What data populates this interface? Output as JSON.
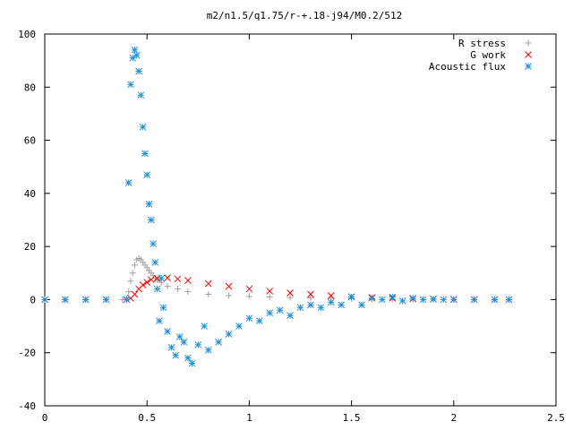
{
  "chart_data": {
    "type": "scatter",
    "title": "m2/n1.5/q1.75/r-+.18-j94/M0.2/512",
    "xlabel": "",
    "ylabel": "",
    "xlim": [
      0,
      2.5
    ],
    "ylim": [
      -40,
      100
    ],
    "x_ticks": [
      0,
      0.5,
      1,
      1.5,
      2,
      2.5
    ],
    "x_tick_labels": [
      "0",
      "0.5",
      "1",
      "1.5",
      "2",
      "2.5"
    ],
    "y_ticks": [
      -40,
      -20,
      0,
      20,
      40,
      60,
      80,
      100
    ],
    "y_tick_labels": [
      "-40",
      "-20",
      "0",
      "20",
      "40",
      "60",
      "80",
      "100"
    ],
    "grid": false,
    "legend_position": "top-right",
    "series": [
      {
        "name": "R stress",
        "marker": "plus",
        "color": "#a0a0a0",
        "x": [
          0.0,
          0.1,
          0.2,
          0.3,
          0.38,
          0.4,
          0.41,
          0.42,
          0.43,
          0.44,
          0.45,
          0.46,
          0.47,
          0.48,
          0.49,
          0.5,
          0.51,
          0.52,
          0.53,
          0.54,
          0.55,
          0.57,
          0.6,
          0.65,
          0.7,
          0.8,
          0.9,
          1.0,
          1.1,
          1.2,
          1.3,
          1.4,
          1.5,
          1.6,
          1.7,
          1.8,
          1.9,
          2.0,
          2.1,
          2.2,
          2.27
        ],
        "y": [
          0,
          0,
          0,
          0,
          0,
          0.5,
          3,
          7,
          10,
          13,
          15,
          15.5,
          15,
          14,
          13,
          12,
          11,
          10,
          9,
          8,
          7.5,
          6.5,
          5,
          4,
          3,
          2,
          1.5,
          1.2,
          1,
          0.8,
          0.6,
          0.5,
          0.3,
          0.2,
          0.1,
          0.05,
          0,
          0,
          0,
          0,
          0
        ]
      },
      {
        "name": "G work",
        "marker": "cross",
        "color": "#ff0000",
        "x": [
          0.0,
          0.1,
          0.2,
          0.3,
          0.4,
          0.42,
          0.44,
          0.46,
          0.48,
          0.5,
          0.52,
          0.55,
          0.6,
          0.65,
          0.7,
          0.8,
          0.9,
          1.0,
          1.1,
          1.2,
          1.3,
          1.4,
          1.5,
          1.6,
          1.7,
          1.8,
          1.9,
          2.0,
          2.1,
          2.2,
          2.27
        ],
        "y": [
          0,
          0,
          0,
          0,
          0,
          0.5,
          2,
          4,
          5.5,
          6.5,
          7.5,
          8,
          8.2,
          7.8,
          7.2,
          6,
          5,
          4,
          3.2,
          2.5,
          2,
          1.5,
          1.1,
          0.8,
          0.5,
          0.3,
          0.2,
          0.1,
          0,
          0,
          0
        ]
      },
      {
        "name": "Acoustic flux",
        "marker": "star",
        "color": "#1e90d6",
        "x": [
          0.0,
          0.1,
          0.2,
          0.3,
          0.4,
          0.41,
          0.42,
          0.43,
          0.44,
          0.45,
          0.46,
          0.47,
          0.48,
          0.49,
          0.5,
          0.51,
          0.52,
          0.53,
          0.54,
          0.55,
          0.56,
          0.57,
          0.58,
          0.6,
          0.62,
          0.64,
          0.66,
          0.68,
          0.7,
          0.72,
          0.75,
          0.78,
          0.8,
          0.85,
          0.9,
          0.95,
          1.0,
          1.05,
          1.1,
          1.15,
          1.2,
          1.25,
          1.3,
          1.35,
          1.4,
          1.45,
          1.5,
          1.55,
          1.6,
          1.65,
          1.7,
          1.75,
          1.8,
          1.85,
          1.9,
          1.95,
          2.0,
          2.1,
          2.2,
          2.27
        ],
        "y": [
          0,
          0,
          0,
          0,
          0,
          44,
          81,
          91,
          94,
          92,
          86,
          77,
          65,
          55,
          47,
          36,
          30,
          21,
          14,
          4,
          -8,
          8,
          -3,
          -12,
          -18,
          -21,
          -14,
          -16,
          -22,
          -24,
          -17,
          -10,
          -19,
          -16,
          -13,
          -10,
          -7,
          -8,
          -5,
          -4,
          -6,
          -3,
          -2,
          -3,
          -1,
          -2,
          1,
          -2,
          0.5,
          0,
          1,
          -0.5,
          0.5,
          0,
          0.2,
          0,
          0,
          0,
          0,
          0
        ]
      }
    ]
  }
}
